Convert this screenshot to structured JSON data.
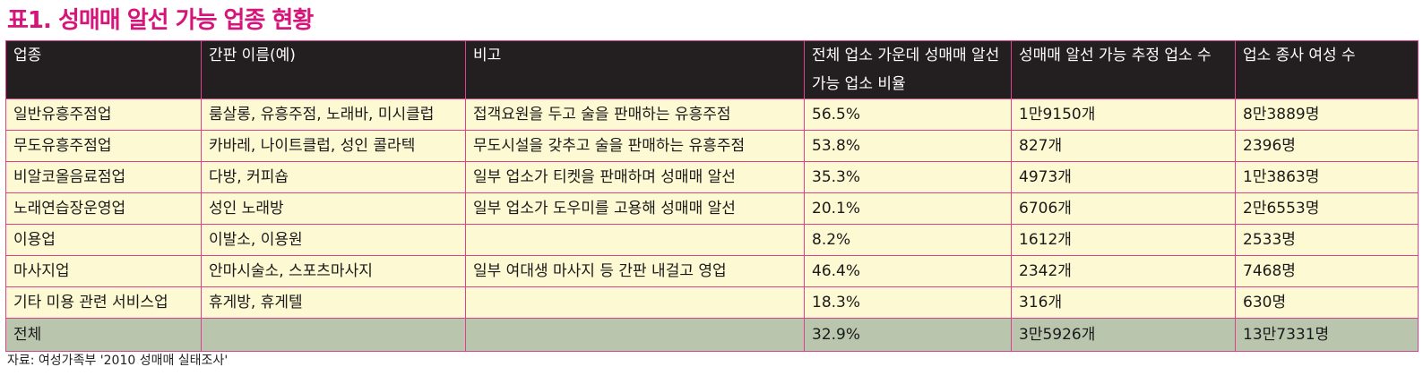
{
  "title": "표1. 성매매 알선 가능 업종 현황",
  "table": {
    "headers": [
      "업종",
      "간판 이름(예)",
      "비고",
      "전체 업소 가운데 성매매 알선 가능 업소 비율",
      "성매매 알선 가능 추정 업소 수",
      "업소 종사 여성 수"
    ],
    "rows": [
      [
        "일반유흥주점업",
        "룸살롱, 유흥주점, 노래바, 미시클럽",
        "접객요원을 두고 술을 판매하는 유흥주점",
        "56.5%",
        "1만9150개",
        "8만3889명"
      ],
      [
        "무도유흥주점업",
        "카바레, 나이트클럽, 성인 콜라텍",
        "무도시설을 갖추고 술을 판매하는 유흥주점",
        "53.8%",
        "827개",
        "2396명"
      ],
      [
        "비알코올음료점업",
        "다방, 커피숍",
        "일부 업소가 티켓을 판매하며 성매매 알선",
        "35.3%",
        "4973개",
        "1만3863명"
      ],
      [
        "노래연습장운영업",
        "성인 노래방",
        "일부 업소가 도우미를 고용해 성매매 알선",
        "20.1%",
        "6706개",
        "2만6553명"
      ],
      [
        "이용업",
        "이발소, 이용원",
        "",
        "8.2%",
        "1612개",
        "2533명"
      ],
      [
        "마사지업",
        "안마시술소, 스포츠마사지",
        "일부 여대생 마사지 등 간판 내걸고 영업",
        "46.4%",
        "2342개",
        "7468명"
      ],
      [
        "기타 미용 관련 서비스업",
        "휴게방, 휴게텔",
        "",
        "18.3%",
        "316개",
        "630명"
      ]
    ],
    "total": [
      "전체",
      "",
      "",
      "32.9%",
      "3만5926개",
      "13만7331명"
    ]
  },
  "source": "자료: 여성가족부 '2010 성매매 실태조사'",
  "colors": {
    "title": "#d6157a",
    "header_bg": "#231f20",
    "row_bg": "#fdf9d2",
    "total_bg": "#b9c6ad",
    "border": "#e0418f"
  }
}
